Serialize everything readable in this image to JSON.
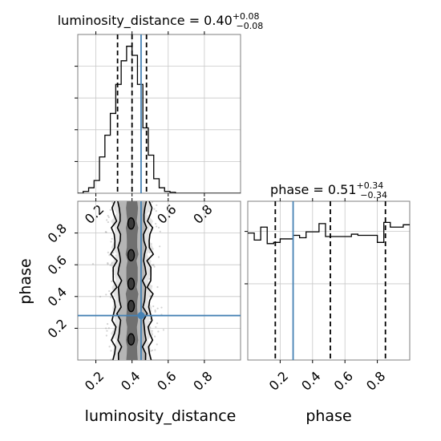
{
  "chart_data": [
    {
      "type": "histogram",
      "panel": "luminosity_distance-marginal",
      "title": "luminosity_distance = 0.40^{+0.08}_{-0.08}",
      "title_main": "luminosity_distance = 0.40",
      "title_sup": "+0.08",
      "title_sub": "−0.08",
      "xlim": [
        0.1,
        1.0
      ],
      "x_ticks": [
        0.2,
        0.4,
        0.6,
        0.8
      ],
      "bin_edges": [
        0.1,
        0.13,
        0.16,
        0.19,
        0.22,
        0.25,
        0.28,
        0.31,
        0.34,
        0.37,
        0.4,
        0.43,
        0.46,
        0.49,
        0.52,
        0.55,
        0.58,
        0.61,
        0.64,
        0.67,
        0.7,
        0.73,
        0.76,
        0.79,
        0.82,
        0.85,
        0.88,
        0.91,
        0.94,
        0.97,
        1.0
      ],
      "counts": [
        0,
        2,
        6,
        14,
        40,
        64,
        88,
        120,
        146,
        162,
        152,
        120,
        72,
        42,
        16,
        6,
        2,
        1,
        0,
        0,
        0,
        0,
        0,
        0,
        0,
        0,
        0,
        0,
        0,
        0
      ],
      "ylim": [
        0,
        175
      ],
      "quantiles": [
        0.32,
        0.4,
        0.48
      ],
      "truth": 0.45,
      "grid": true
    },
    {
      "type": "histogram",
      "panel": "phase-marginal",
      "title": "phase = 0.51^{+0.34}_{-0.34}",
      "title_main": "phase = 0.51",
      "title_sup": "+0.34",
      "title_sub": "−0.34",
      "xlim": [
        0.0,
        1.0
      ],
      "x_ticks": [
        0.2,
        0.4,
        0.6,
        0.8
      ],
      "bin_edges": [
        0.0,
        0.04,
        0.08,
        0.12,
        0.16,
        0.2,
        0.24,
        0.28,
        0.32,
        0.36,
        0.4,
        0.44,
        0.48,
        0.52,
        0.56,
        0.6,
        0.64,
        0.68,
        0.72,
        0.76,
        0.8,
        0.84,
        0.88,
        0.92,
        0.96,
        1.0
      ],
      "counts": [
        1.08,
        1.02,
        1.13,
        0.99,
        1.0,
        1.03,
        1.03,
        1.06,
        1.04,
        1.09,
        1.09,
        1.16,
        1.05,
        1.05,
        1.05,
        1.05,
        1.07,
        1.06,
        1.06,
        1.06,
        1.0,
        1.17,
        1.13,
        1.13,
        1.15
      ],
      "ylim": [
        0,
        1.35
      ],
      "quantiles": [
        0.17,
        0.51,
        0.85
      ],
      "truth": 0.28,
      "grid": true
    },
    {
      "type": "2d-contour-scatter",
      "panel": "phase-vs-luminosity_distance",
      "xlabel": "luminosity_distance",
      "ylabel": "phase",
      "xlim": [
        0.1,
        1.0
      ],
      "ylim": [
        0.0,
        1.0
      ],
      "x_ticks": [
        0.2,
        0.4,
        0.6,
        0.8
      ],
      "y_ticks": [
        0.2,
        0.4,
        0.6,
        0.8
      ],
      "truth": [
        0.45,
        0.28
      ],
      "contour_half_widths": [
        0.03,
        0.07,
        0.1
      ],
      "contour_center": 0.4,
      "scatter_spread": 0.08,
      "grid": true
    }
  ],
  "labels": {
    "x_lum": "luminosity_distance",
    "x_phase": "phase",
    "y_phase": "phase"
  },
  "colors": {
    "truth": "#4682b4",
    "line": "#000000",
    "grid": "#c8c8c8",
    "axis": "#7f7f7f",
    "scatter": "#9e9e9e"
  }
}
